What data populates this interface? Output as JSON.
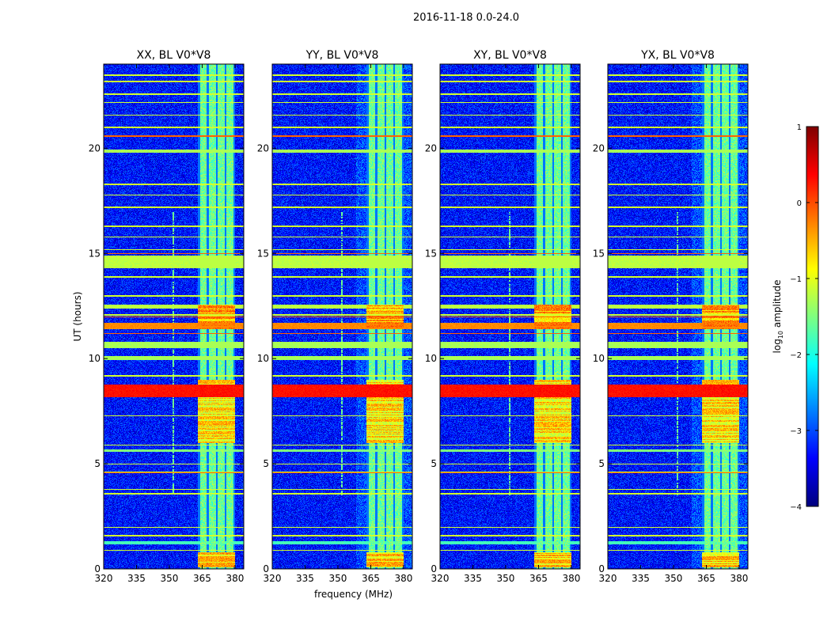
{
  "chart_data": {
    "type": "heatmap",
    "title": "2016-11-18 0.0-24.0",
    "xlabel": "frequency (MHz)",
    "ylabel": "UT (hours)",
    "xlim": [
      320,
      384
    ],
    "ylim": [
      0,
      24
    ],
    "xticks": [
      320,
      335,
      350,
      365,
      380
    ],
    "yticks": [
      0,
      5,
      10,
      15,
      20
    ],
    "panels": [
      {
        "title": "XX, BL V0*V8",
        "show_ylabel": true,
        "show_xlabel": false,
        "variant": 0
      },
      {
        "title": "YY, BL V0*V8",
        "show_ylabel": false,
        "show_xlabel": true,
        "variant": 1
      },
      {
        "title": "XY, BL V0*V8",
        "show_ylabel": false,
        "show_xlabel": false,
        "variant": 2
      },
      {
        "title": "YX, BL V0*V8",
        "show_ylabel": false,
        "show_xlabel": false,
        "variant": 3
      }
    ],
    "colorbar": {
      "label_main": "log",
      "label_sub": "10",
      "label_rest": " amplitude",
      "range": [
        -4,
        1
      ],
      "ticks": [
        1,
        0,
        -1,
        -2,
        -3,
        -4
      ],
      "tick_labels": [
        "1",
        "0",
        "−1",
        "−2",
        "−3",
        "−4"
      ],
      "colormap": "jet"
    },
    "model": {
      "background_level": -3.3,
      "signal_band_mhz": [
        363,
        380
      ],
      "signal_band_level": -1.6,
      "signal_channels_mhz": [
        363.5,
        367.5,
        371.5,
        375.5,
        379.5
      ],
      "strong_band_periods_ut": [
        [
          0.1,
          0.8,
          -0.4
        ],
        [
          6.0,
          9.0,
          -0.5
        ],
        [
          11.4,
          12.6,
          -0.2
        ]
      ],
      "horizontal_bands_ut": [
        [
          14.3,
          14.9,
          -1.2
        ],
        [
          11.4,
          11.7,
          -0.3
        ],
        [
          10.5,
          10.8,
          -1.3
        ],
        [
          9.95,
          10.15,
          -1.3
        ],
        [
          8.2,
          8.8,
          0.3
        ],
        [
          19.8,
          19.95,
          -1.3
        ],
        [
          12.4,
          12.6,
          -1.2
        ],
        [
          1.2,
          1.35,
          -1.8
        ],
        [
          5.6,
          5.7,
          -1.5
        ]
      ],
      "thin_lines_ut": [
        0.9,
        1.6,
        2.0,
        3.6,
        3.8,
        4.6,
        5.0,
        5.9,
        7.3,
        9.2,
        12.1,
        13.0,
        13.9,
        15.2,
        15.8,
        16.3,
        17.2,
        17.8,
        18.3,
        20.6,
        21.0,
        21.6,
        22.2,
        22.6,
        23.2,
        23.5
      ],
      "red_lines_ut": [
        4.6,
        11.2,
        12.0,
        15.0,
        20.6
      ]
    }
  }
}
